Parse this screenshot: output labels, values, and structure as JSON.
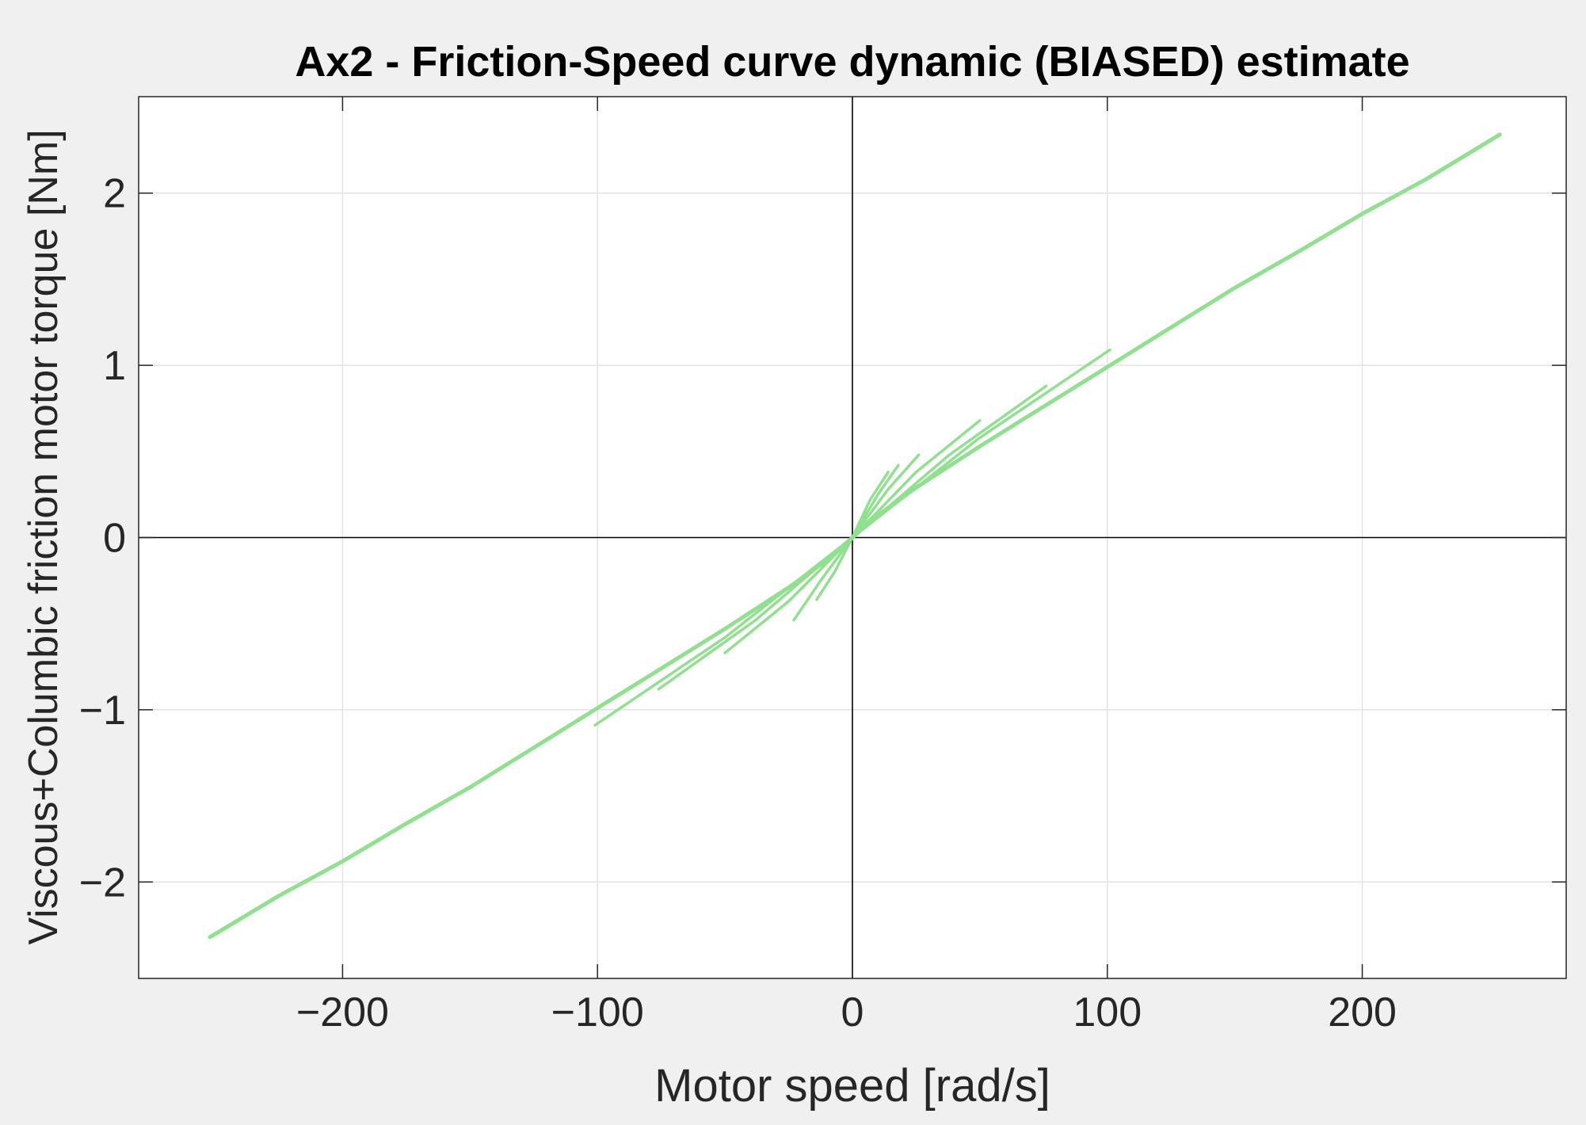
{
  "chart_data": {
    "type": "line",
    "title": "Ax2 - Friction-Speed curve dynamic (BIASED) estimate",
    "xlabel": "Motor speed [rad/s]",
    "ylabel": "Viscous+Columbic friction motor torque [Nm]",
    "xlim": [
      -280,
      280
    ],
    "ylim": [
      -2.56,
      2.56
    ],
    "xticks": [
      -200,
      -100,
      0,
      100,
      200
    ],
    "xtick_labels": [
      "−200",
      "−100",
      "0",
      "100",
      "200"
    ],
    "yticks": [
      -2,
      -1,
      0,
      1,
      2
    ],
    "ytick_labels": [
      "−2",
      "−1",
      "0",
      "1",
      "2"
    ],
    "grid": true,
    "zero_axes": true,
    "series": [
      {
        "color": "#90e090",
        "x": [
          0,
          10,
          25,
          50,
          75,
          100,
          125,
          150,
          175,
          200,
          225,
          254
        ],
        "y": [
          0,
          0.13,
          0.29,
          0.53,
          0.76,
          0.99,
          1.22,
          1.45,
          1.66,
          1.88,
          2.08,
          2.34
        ],
        "transient_branches": [
          {
            "x": [
              0,
              7,
              14
            ],
            "y": [
              0,
              0.22,
              0.38
            ]
          },
          {
            "x": [
              0,
              10,
              18
            ],
            "y": [
              0,
              0.25,
              0.42
            ]
          },
          {
            "x": [
              0,
              14,
              26
            ],
            "y": [
              0,
              0.28,
              0.48
            ]
          },
          {
            "x": [
              0,
              25,
              50
            ],
            "y": [
              0,
              0.38,
              0.68
            ]
          },
          {
            "x": [
              0,
              38,
              76
            ],
            "y": [
              0,
              0.48,
              0.88
            ]
          },
          {
            "x": [
              0,
              50,
              101
            ],
            "y": [
              0,
              0.58,
              1.09
            ]
          },
          {
            "x": [
              0,
              -7,
              -14
            ],
            "y": [
              0,
              -0.2,
              -0.36
            ]
          },
          {
            "x": [
              0,
              -12,
              -23
            ],
            "y": [
              0,
              -0.24,
              -0.48
            ]
          },
          {
            "x": [
              0,
              -25,
              -50
            ],
            "y": [
              0,
              -0.37,
              -0.67
            ]
          },
          {
            "x": [
              0,
              -38,
              -76
            ],
            "y": [
              0,
              -0.48,
              -0.88
            ]
          },
          {
            "x": [
              0,
              -50,
              -101
            ],
            "y": [
              0,
              -0.58,
              -1.09
            ]
          }
        ]
      },
      {
        "color": "#90e090",
        "x": [
          0,
          -10,
          -25,
          -50,
          -75,
          -100,
          -125,
          -150,
          -175,
          -200,
          -225,
          -252
        ],
        "y": [
          0,
          -0.13,
          -0.29,
          -0.53,
          -0.76,
          -0.99,
          -1.22,
          -1.45,
          -1.66,
          -1.88,
          -2.08,
          -2.32
        ]
      }
    ]
  }
}
